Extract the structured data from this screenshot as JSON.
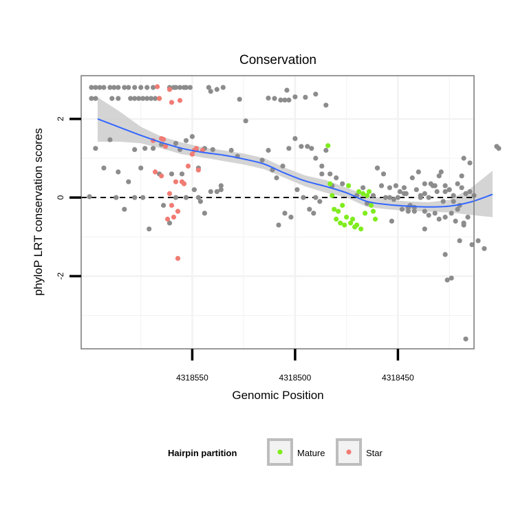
{
  "chart_data": {
    "type": "scatter",
    "title": "Conservation",
    "xlabel": "Genomic Position",
    "ylabel": "phyloP LRT conservation scores",
    "x_reversed": true,
    "xlim": [
      4318413,
      4318604
    ],
    "ylim": [
      -3.85,
      3.1
    ],
    "x_ticks": [
      {
        "value": 4318550,
        "label": "4318550"
      },
      {
        "value": 4318500,
        "label": "4318500"
      },
      {
        "value": 4318450,
        "label": "4318450"
      }
    ],
    "y_ticks": [
      {
        "value": 2,
        "label": "2"
      },
      {
        "value": 0,
        "label": "0"
      },
      {
        "value": -2,
        "label": "-2"
      }
    ],
    "grid": true,
    "reference_line": {
      "y": 0,
      "style": "dashed",
      "color": "#000000"
    },
    "legend": {
      "title": "Hairpin partition",
      "position": "bottom",
      "entries": [
        {
          "label": "Mature",
          "color": "#7FEC1F"
        },
        {
          "label": "Star",
          "color": "#F07C74"
        }
      ]
    },
    "colors": {
      "other": "#8C8C8C",
      "mature": "#7FEC1F",
      "star": "#F07C74",
      "smooth_line": "#3366FF",
      "ribbon": "#CCCCCC",
      "grid": "#F2F2F2",
      "panel_border": "#7F7F7F"
    },
    "series": [
      {
        "group": "other",
        "points": [
          [
            4318599,
            2.8
          ],
          [
            4318597,
            2.8
          ],
          [
            4318595,
            2.8
          ],
          [
            4318593,
            2.8
          ],
          [
            4318590,
            2.8
          ],
          [
            4318588,
            2.8
          ],
          [
            4318586,
            2.8
          ],
          [
            4318583,
            2.8
          ],
          [
            4318581,
            2.8
          ],
          [
            4318578,
            2.8
          ],
          [
            4318575,
            2.8
          ],
          [
            4318572,
            2.8
          ],
          [
            4318569,
            2.8
          ],
          [
            4318561,
            2.8
          ],
          [
            4318559,
            2.8
          ],
          [
            4318558,
            2.8
          ],
          [
            4318556,
            2.8
          ],
          [
            4318554,
            2.8
          ],
          [
            4318553,
            2.8
          ],
          [
            4318551,
            2.8
          ],
          [
            4318542,
            2.8
          ],
          [
            4318535,
            2.8
          ],
          [
            4318599,
            2.52
          ],
          [
            4318597,
            2.52
          ],
          [
            4318589,
            2.52
          ],
          [
            4318586,
            2.52
          ],
          [
            4318580,
            2.52
          ],
          [
            4318578,
            2.52
          ],
          [
            4318576,
            2.52
          ],
          [
            4318574,
            2.52
          ],
          [
            4318572,
            2.52
          ],
          [
            4318570,
            2.52
          ],
          [
            4318568,
            2.52
          ],
          [
            4318566,
            2.52
          ],
          [
            4318541,
            2.7
          ],
          [
            4318538,
            2.75
          ],
          [
            4318527,
            2.5
          ],
          [
            4318513,
            2.53
          ],
          [
            4318510,
            2.52
          ],
          [
            4318507,
            2.48
          ],
          [
            4318505,
            2.48
          ],
          [
            4318503,
            2.48
          ],
          [
            4318504,
            2.73
          ],
          [
            4318500,
            2.56
          ],
          [
            4318495,
            2.55
          ],
          [
            4318490,
            2.63
          ],
          [
            4318485,
            2.35
          ],
          [
            4318597,
            1.25
          ],
          [
            4318593,
            0.75
          ],
          [
            4318590,
            1.47
          ],
          [
            4318586,
            0.65
          ],
          [
            4318581,
            0.4
          ],
          [
            4318578,
            1.22
          ],
          [
            4318575,
            0.75
          ],
          [
            4318573,
            1.25
          ],
          [
            4318569,
            1.25
          ],
          [
            4318565,
            1.35
          ],
          [
            4318560,
            0.6
          ],
          [
            4318558,
            1.38
          ],
          [
            4318556,
            1.22
          ],
          [
            4318553,
            1.45
          ],
          [
            4318550,
            1.55
          ],
          [
            4318548,
            1.22
          ],
          [
            4318547,
            0.75
          ],
          [
            4318544,
            1.25
          ],
          [
            4318540,
            1.22
          ],
          [
            4318536,
            0.2
          ],
          [
            4318531,
            1.2
          ],
          [
            4318528,
            1.05
          ],
          [
            4318524,
            1.95
          ],
          [
            4318600,
            0.02
          ],
          [
            4318587,
            0.0
          ],
          [
            4318583,
            -0.3
          ],
          [
            4318578,
            0.0
          ],
          [
            4318574,
            0.0
          ],
          [
            4318571,
            -0.8
          ],
          [
            4318566,
            0.6
          ],
          [
            4318564,
            -0.2
          ],
          [
            4318561,
            -0.65
          ],
          [
            4318558,
            0.0
          ],
          [
            4318555,
            0.6
          ],
          [
            4318553,
            0.0
          ],
          [
            4318549,
            0.2
          ],
          [
            4318547,
            0.0
          ],
          [
            4318546,
            -0.1
          ],
          [
            4318544,
            -0.4
          ],
          [
            4318541,
            0.15
          ],
          [
            4318538,
            0.15
          ],
          [
            4318536,
            0.3
          ],
          [
            4318516,
            0.95
          ],
          [
            4318513,
            1.2
          ],
          [
            4318511,
            0.7
          ],
          [
            4318509,
            0.5
          ],
          [
            4318506,
            0.8
          ],
          [
            4318503,
            1.25
          ],
          [
            4318500,
            1.5
          ],
          [
            4318497,
            1.3
          ],
          [
            4318494,
            1.3
          ],
          [
            4318492,
            1.25
          ],
          [
            4318490,
            1.0
          ],
          [
            4318487,
            0.8
          ],
          [
            4318485,
            1.2
          ],
          [
            4318483,
            0.6
          ],
          [
            4318480,
            0.5
          ],
          [
            4318477,
            0.35
          ],
          [
            4318482,
            0.3
          ],
          [
            4318488,
            -0.1
          ],
          [
            4318508,
            -0.7
          ],
          [
            4318505,
            -0.4
          ],
          [
            4318502,
            -0.5
          ],
          [
            4318499,
            0.2
          ],
          [
            4318496,
            0.0
          ],
          [
            4318493,
            -0.3
          ],
          [
            4318491,
            -0.4
          ],
          [
            4318490,
            0.0
          ],
          [
            4318487,
            0.6
          ],
          [
            4318460,
            0.75
          ],
          [
            4318457,
            0.6
          ],
          [
            4318454,
            0.0
          ],
          [
            4318452,
            -0.05
          ],
          [
            4318450,
            0.0
          ],
          [
            4318447,
            0.1
          ],
          [
            4318445,
            -0.25
          ],
          [
            4318443,
            0.5
          ],
          [
            4318440,
            0.65
          ],
          [
            4318437,
            -0.35
          ],
          [
            4318435,
            -0.45
          ],
          [
            4318432,
            0.3
          ],
          [
            4318429,
            0.65
          ],
          [
            4318427,
            0.3
          ],
          [
            4318425,
            0.2
          ],
          [
            4318423,
            -0.1
          ],
          [
            4318421,
            0.35
          ],
          [
            4318419,
            0.55
          ],
          [
            4318418,
            1.0
          ],
          [
            4318470,
            0.05
          ],
          [
            4318467,
            0.25
          ],
          [
            4318465,
            -0.15
          ],
          [
            4318462,
            0.05
          ],
          [
            4318460,
            0.75
          ],
          [
            4318456,
            0.0
          ],
          [
            4318454,
            0.25
          ],
          [
            4318451,
            0.3
          ],
          [
            4318449,
            0.15
          ],
          [
            4318447,
            0.25
          ],
          [
            4318445,
            -0.25
          ],
          [
            4318442,
            -0.35
          ],
          [
            4318439,
            0.05
          ],
          [
            4318437,
            0.35
          ],
          [
            4318435,
            0.0
          ],
          [
            4318433,
            0.3
          ],
          [
            4318431,
            0.15
          ],
          [
            4318428,
            -0.1
          ],
          [
            4318425,
            0.2
          ],
          [
            4318423,
            0.05
          ],
          [
            4318421,
            -0.3
          ],
          [
            4318419,
            0.25
          ],
          [
            4318417,
            0.1
          ],
          [
            4318415,
            0.15
          ],
          [
            4318458,
            0.3
          ],
          [
            4318446,
            0.1
          ],
          [
            4318444,
            -0.2
          ],
          [
            4318441,
            0.2
          ],
          [
            4318439,
            0.0
          ],
          [
            4318437,
            0.1
          ],
          [
            4318434,
            0.35
          ],
          [
            4318430,
            0.55
          ],
          [
            4318427,
            0.15
          ],
          [
            4318424,
            -0.4
          ],
          [
            4318422,
            -0.6
          ],
          [
            4318420,
            -0.2
          ],
          [
            4318418,
            -0.65
          ],
          [
            4318416,
            -0.5
          ],
          [
            4318413,
            0.05
          ],
          [
            4318453,
            -0.6
          ],
          [
            4318448,
            -0.3
          ],
          [
            4318445,
            -0.35
          ],
          [
            4318432,
            -0.4
          ],
          [
            4318427,
            -0.5
          ],
          [
            4318418,
            -0.7
          ],
          [
            4318414,
            -1.2
          ],
          [
            4318411,
            -1.1
          ],
          [
            4318408,
            -1.3
          ],
          [
            4318402,
            1.3
          ],
          [
            4318401,
            1.25
          ],
          [
            4318442,
            -0.25
          ],
          [
            4318437,
            -0.8
          ],
          [
            4318430,
            -0.55
          ],
          [
            4318427,
            -1.45
          ],
          [
            4318426,
            -2.1
          ],
          [
            4318424,
            -2.05
          ],
          [
            4318420,
            -1.1
          ],
          [
            4318417,
            -3.6
          ],
          [
            4318415,
            0.88
          ]
        ]
      },
      {
        "group": "mature",
        "points": [
          [
            4318484,
            1.32
          ],
          [
            4318483,
            0.35
          ],
          [
            4318482,
            0.05
          ],
          [
            4318481,
            -0.3
          ],
          [
            4318480,
            -0.55
          ],
          [
            4318479,
            -0.35
          ],
          [
            4318478,
            -0.65
          ],
          [
            4318477,
            -0.2
          ],
          [
            4318476,
            -0.7
          ],
          [
            4318475,
            -0.5
          ],
          [
            4318474,
            0.3
          ],
          [
            4318473,
            -0.65
          ],
          [
            4318472,
            -0.55
          ],
          [
            4318471,
            -0.75
          ],
          [
            4318470,
            -0.7
          ],
          [
            4318469,
            0.15
          ],
          [
            4318468,
            -0.8
          ],
          [
            4318467,
            0.1
          ],
          [
            4318466,
            -0.4
          ],
          [
            4318465,
            0.05
          ],
          [
            4318464,
            0.15
          ],
          [
            4318463,
            -0.2
          ],
          [
            4318462,
            -0.35
          ],
          [
            4318461,
            -0.55
          ]
        ]
      },
      {
        "group": "star",
        "points": [
          [
            4318567,
            2.82
          ],
          [
            4318566,
            2.52
          ],
          [
            4318561,
            2.75
          ],
          [
            4318560,
            2.42
          ],
          [
            4318556,
            2.47
          ],
          [
            4318565,
            1.5
          ],
          [
            4318564,
            1.48
          ],
          [
            4318563,
            1.3
          ],
          [
            4318569,
            1.45
          ],
          [
            4318568,
            0.65
          ],
          [
            4318565,
            0.55
          ],
          [
            4318561,
            0.1
          ],
          [
            4318560,
            -0.2
          ],
          [
            4318559,
            -0.5
          ],
          [
            4318558,
            0.4
          ],
          [
            4318557,
            -0.35
          ],
          [
            4318555,
            0.4
          ],
          [
            4318554,
            0.35
          ],
          [
            4318552,
            0.8
          ],
          [
            4318550,
            1.1
          ],
          [
            4318549,
            1.2
          ],
          [
            4318548,
            1.25
          ],
          [
            4318545,
            1.2
          ],
          [
            4318562,
            -0.55
          ],
          [
            4318557,
            -1.55
          ],
          [
            4318547,
            0.7
          ]
        ]
      }
    ],
    "smooth": {
      "x": [
        4318596,
        4318585,
        4318575,
        4318565,
        4318555,
        4318545,
        4318535,
        4318525,
        4318515,
        4318505,
        4318495,
        4318485,
        4318475,
        4318465,
        4318455,
        4318445,
        4318435,
        4318425,
        4318415,
        4318404
      ],
      "y": [
        2.0,
        1.78,
        1.58,
        1.4,
        1.25,
        1.15,
        1.08,
        0.98,
        0.85,
        0.62,
        0.42,
        0.28,
        0.12,
        -0.1,
        -0.18,
        -0.22,
        -0.24,
        -0.22,
        -0.12,
        0.08
      ],
      "ymin": [
        1.42,
        1.42,
        1.38,
        1.25,
        1.1,
        1.02,
        0.93,
        0.84,
        0.72,
        0.5,
        0.28,
        0.12,
        0.0,
        -0.24,
        -0.3,
        -0.34,
        -0.36,
        -0.38,
        -0.44,
        -0.5
      ],
      "ymax": [
        2.55,
        2.18,
        1.8,
        1.55,
        1.4,
        1.28,
        1.2,
        1.12,
        1.0,
        0.76,
        0.56,
        0.44,
        0.25,
        0.06,
        -0.06,
        -0.1,
        -0.12,
        -0.06,
        0.22,
        0.68
      ]
    }
  }
}
